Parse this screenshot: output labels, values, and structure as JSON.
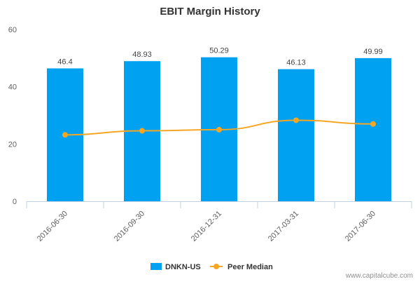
{
  "chart_data": {
    "type": "bar",
    "title": "EBIT Margin History",
    "categories": [
      "2016-06-30",
      "2016-09-30",
      "2016-12-31",
      "2017-03-31",
      "2017-06-30"
    ],
    "yticks": [
      "0",
      "20",
      "40",
      "60"
    ],
    "ylim": [
      0,
      60
    ],
    "grid": false,
    "legend_position": "bottom",
    "series": [
      {
        "name": "DNKN-US",
        "type": "bar",
        "color": "#00a1f1",
        "values": [
          46.4,
          48.93,
          50.29,
          46.13,
          49.99
        ],
        "labels": [
          "46.4",
          "48.93",
          "50.29",
          "46.13",
          "49.99"
        ]
      },
      {
        "name": "Peer Median",
        "type": "line",
        "color": "#f5a623",
        "values": [
          23.2,
          24.6,
          25.0,
          28.3,
          27.0
        ]
      }
    ]
  },
  "credit": "www.capitalcube.com"
}
